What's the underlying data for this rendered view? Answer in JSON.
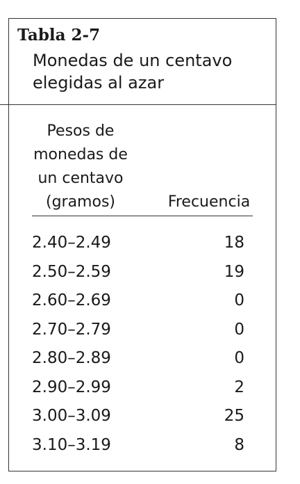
{
  "table": {
    "number": "Tabla 2-7",
    "caption_line1": "Monedas de un centavo",
    "caption_line2": "elegidas al azar",
    "headers": {
      "weight_lines": [
        "Pesos de",
        "monedas de",
        "un centavo",
        "(gramos)"
      ],
      "frequency": "Frecuencia"
    },
    "rows": [
      {
        "range": "2.40–2.49",
        "frequency": "18"
      },
      {
        "range": "2.50–2.59",
        "frequency": "19"
      },
      {
        "range": "2.60–2.69",
        "frequency": "0"
      },
      {
        "range": "2.70–2.79",
        "frequency": "0"
      },
      {
        "range": "2.80–2.89",
        "frequency": "0"
      },
      {
        "range": "2.90–2.99",
        "frequency": "2"
      },
      {
        "range": "3.00–3.09",
        "frequency": "25"
      },
      {
        "range": "3.10–3.19",
        "frequency": "8"
      }
    ]
  }
}
